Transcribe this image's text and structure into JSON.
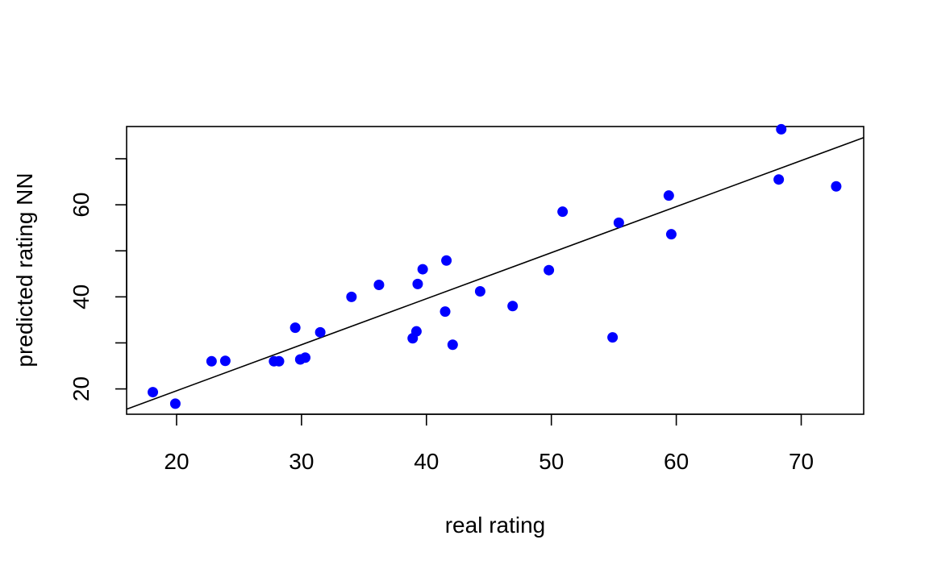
{
  "chart_data": {
    "type": "scatter",
    "title": "",
    "xlabel": "real rating",
    "ylabel": "predicted rating NN",
    "xlim": [
      16,
      75
    ],
    "ylim": [
      14.5,
      77
    ],
    "x_ticks": [
      20,
      30,
      40,
      50,
      60,
      70
    ],
    "y_ticks": [
      20,
      30,
      40,
      50,
      60,
      70
    ],
    "y_tick_labels": [
      "20",
      "",
      "40",
      "",
      "60",
      ""
    ],
    "grid": false,
    "point_color": "#0000ff",
    "line_color": "#000000",
    "fit_line": {
      "intercept": -0.4,
      "slope": 1.0
    },
    "points": [
      {
        "x": 18.1,
        "y": 19.3
      },
      {
        "x": 19.9,
        "y": 16.8
      },
      {
        "x": 22.8,
        "y": 26.0
      },
      {
        "x": 23.9,
        "y": 26.1
      },
      {
        "x": 27.8,
        "y": 26.0
      },
      {
        "x": 28.2,
        "y": 26.0
      },
      {
        "x": 29.5,
        "y": 33.3
      },
      {
        "x": 29.9,
        "y": 26.4
      },
      {
        "x": 30.3,
        "y": 26.8
      },
      {
        "x": 31.5,
        "y": 32.3
      },
      {
        "x": 34.0,
        "y": 40.0
      },
      {
        "x": 36.2,
        "y": 42.6
      },
      {
        "x": 38.9,
        "y": 31.0
      },
      {
        "x": 39.2,
        "y": 32.5
      },
      {
        "x": 39.3,
        "y": 42.8
      },
      {
        "x": 39.7,
        "y": 46.0
      },
      {
        "x": 41.5,
        "y": 36.8
      },
      {
        "x": 41.6,
        "y": 47.9
      },
      {
        "x": 42.1,
        "y": 29.6
      },
      {
        "x": 44.3,
        "y": 41.2
      },
      {
        "x": 46.9,
        "y": 38.0
      },
      {
        "x": 49.8,
        "y": 45.8
      },
      {
        "x": 50.9,
        "y": 58.5
      },
      {
        "x": 54.9,
        "y": 31.2
      },
      {
        "x": 55.4,
        "y": 56.1
      },
      {
        "x": 59.4,
        "y": 62.0
      },
      {
        "x": 59.6,
        "y": 53.6
      },
      {
        "x": 68.2,
        "y": 65.5
      },
      {
        "x": 68.4,
        "y": 76.4
      },
      {
        "x": 72.8,
        "y": 64.0
      }
    ]
  }
}
